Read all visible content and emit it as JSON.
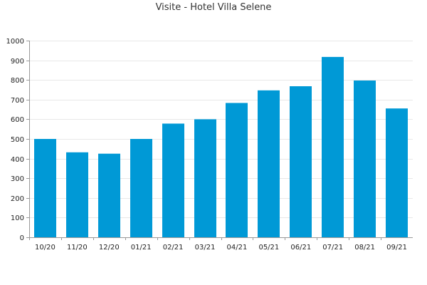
{
  "chart_data": {
    "type": "bar",
    "title": "Visite - Hotel Villa Selene",
    "xlabel": "",
    "ylabel": "",
    "categories": [
      "10/20",
      "11/20",
      "12/20",
      "01/21",
      "02/21",
      "03/21",
      "04/21",
      "05/21",
      "06/21",
      "07/21",
      "08/21",
      "09/21"
    ],
    "values": [
      500,
      432,
      425,
      500,
      578,
      600,
      683,
      747,
      768,
      917,
      797,
      655
    ],
    "ylim": [
      0,
      1000
    ],
    "yticks": [
      0,
      100,
      200,
      300,
      400,
      500,
      600,
      700,
      800,
      900,
      1000
    ],
    "grid": true,
    "legend": "none",
    "bar_color": "#0099d6",
    "grid_color": "#e8e8e8",
    "axis_color": "#999999"
  }
}
